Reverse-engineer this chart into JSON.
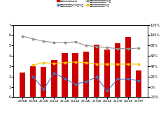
{
  "years": [
    "2008A",
    "2009A",
    "2010A",
    "2011A",
    "2012A",
    "2013A",
    "2014A",
    "2015A",
    "2016A",
    "2017A",
    "2018A",
    "2019H"
  ],
  "revenue": [
    2.4,
    3.0,
    2.9,
    3.6,
    4.3,
    4.3,
    4.4,
    5.1,
    4.6,
    5.2,
    5.8,
    2.6
  ],
  "yoy": [
    null,
    20,
    -5,
    27,
    16,
    5,
    10,
    19,
    -8,
    15,
    15,
    12
  ],
  "share": [
    98,
    93,
    88,
    86,
    86,
    87,
    80,
    78,
    76,
    74,
    74,
    75
  ],
  "gross_margin": [
    null,
    42,
    47,
    45,
    47,
    48,
    47,
    44,
    44,
    44,
    44,
    44
  ],
  "bar_color": "#cc0000",
  "line_yoy_color": "#4472c4",
  "line_share_color": "#909090",
  "line_gm_color": "#ffc000",
  "legend_labels": [
    "色选机国内收入（元）",
    "色选机国内收入YOY（%）",
    "色选机国内收入占比（%）",
    "色选机国内毛利率（%）"
  ],
  "ylim_left": [
    0,
    7
  ],
  "ylim_right": [
    -20,
    120
  ],
  "right_ticks": [
    -20,
    0,
    20,
    40,
    60,
    80,
    100,
    120
  ],
  "left_ticks": [
    0,
    1,
    2,
    3,
    4,
    5,
    6,
    7
  ],
  "bg_color": "#ffffff"
}
